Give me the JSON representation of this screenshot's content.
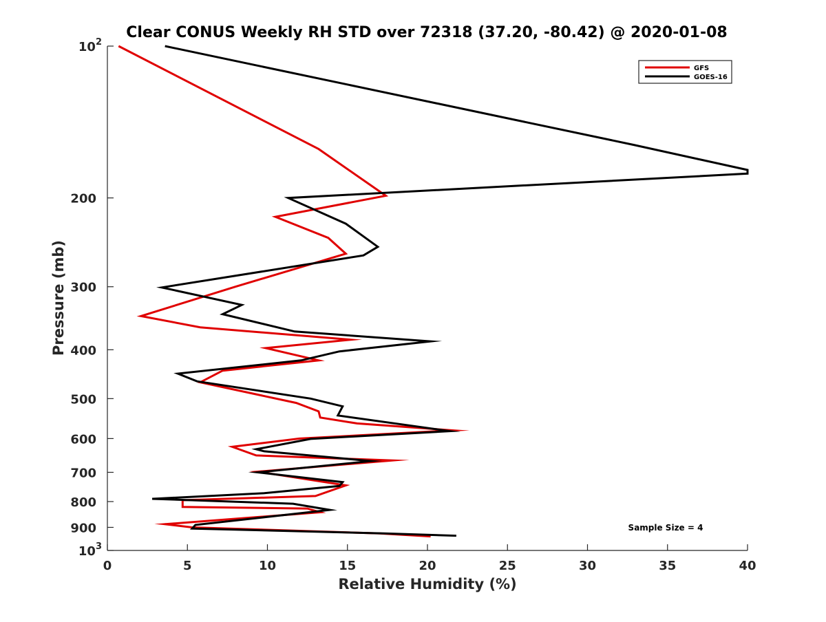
{
  "chart_data": {
    "type": "line",
    "title": "Clear CONUS Weekly RH STD over 72318 (37.20, -80.42) @ 2020-01-08",
    "xlabel": "Relative Humidity (%)",
    "ylabel": "Pressure (mb)",
    "xlim": [
      0,
      40
    ],
    "ylim": [
      100,
      1000
    ],
    "y_scale": "log",
    "y_reversed": true,
    "x_ticks": [
      0,
      5,
      10,
      15,
      20,
      25,
      30,
      35,
      40
    ],
    "x_tick_labels": [
      "0",
      "5",
      "10",
      "15",
      "20",
      "25",
      "30",
      "35",
      "40"
    ],
    "y_ticks": [
      100,
      200,
      300,
      400,
      500,
      600,
      700,
      800,
      900,
      1000
    ],
    "y_tick_labels": [
      "10^2",
      "200",
      "300",
      "400",
      "500",
      "600",
      "700",
      "800",
      "900",
      "10^3"
    ],
    "legend_position": "top-right",
    "grid": false,
    "annotation": "Sample Size = 4",
    "series": [
      {
        "name": "GFS",
        "color": "#e00000",
        "points": [
          [
            0.7,
            100
          ],
          [
            13.2,
            160
          ],
          [
            17.4,
            198
          ],
          [
            10.5,
            218
          ],
          [
            13.8,
            240
          ],
          [
            14.9,
            258
          ],
          [
            8.0,
            300
          ],
          [
            2.1,
            343
          ],
          [
            5.8,
            361
          ],
          [
            15.2,
            382
          ],
          [
            9.9,
            397
          ],
          [
            13.2,
            420
          ],
          [
            7.2,
            440
          ],
          [
            5.8,
            464
          ],
          [
            11.8,
            510
          ],
          [
            13.2,
            530
          ],
          [
            13.3,
            545
          ],
          [
            15.6,
            560
          ],
          [
            21.6,
            578
          ],
          [
            12.0,
            600
          ],
          [
            7.8,
            623
          ],
          [
            9.3,
            648
          ],
          [
            17.8,
            663
          ],
          [
            9.4,
            698
          ],
          [
            14.9,
            743
          ],
          [
            13.0,
            780
          ],
          [
            4.7,
            795
          ],
          [
            4.7,
            820
          ],
          [
            12.5,
            826
          ],
          [
            13.3,
            840
          ],
          [
            3.6,
            887
          ],
          [
            5.3,
            900
          ],
          [
            17.0,
            925
          ],
          [
            20.2,
            938
          ]
        ]
      },
      {
        "name": "GOES-16",
        "color": "#000000",
        "points": [
          [
            3.6,
            100
          ],
          [
            32.9,
            157
          ],
          [
            40.0,
            176
          ],
          [
            40.0,
            179
          ],
          [
            11.3,
            200
          ],
          [
            14.9,
            225
          ],
          [
            16.9,
            250
          ],
          [
            16.0,
            260
          ],
          [
            3.4,
            301
          ],
          [
            8.4,
            326
          ],
          [
            7.2,
            340
          ],
          [
            11.7,
            368
          ],
          [
            20.2,
            385
          ],
          [
            14.5,
            403
          ],
          [
            12.1,
            420
          ],
          [
            4.4,
            446
          ],
          [
            5.6,
            462
          ],
          [
            12.7,
            500
          ],
          [
            14.7,
            518
          ],
          [
            14.4,
            540
          ],
          [
            21.4,
            580
          ],
          [
            12.7,
            601
          ],
          [
            9.3,
            630
          ],
          [
            9.8,
            636
          ],
          [
            16.5,
            665
          ],
          [
            9.4,
            700
          ],
          [
            14.7,
            732
          ],
          [
            14.5,
            745
          ],
          [
            9.8,
            770
          ],
          [
            2.8,
            790
          ],
          [
            11.6,
            808
          ],
          [
            13.9,
            831
          ],
          [
            5.5,
            890
          ],
          [
            5.3,
            905
          ],
          [
            17.3,
            925
          ],
          [
            21.8,
            935
          ]
        ]
      }
    ]
  }
}
